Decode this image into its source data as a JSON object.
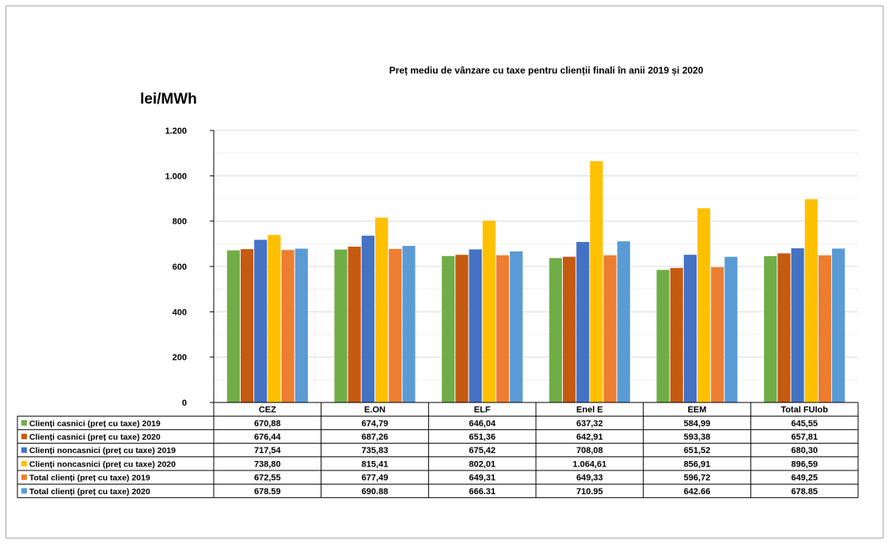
{
  "chart_data": {
    "type": "bar",
    "title": "Preț mediu de vânzare cu taxe pentru clienții finali în anii 2019 și 2020",
    "ylabel": "lei/MWh",
    "ylim": [
      0,
      1200
    ],
    "yticks": [
      0,
      200,
      400,
      600,
      800,
      1000,
      1200
    ],
    "ytick_labels": [
      "0",
      "200",
      "400",
      "600",
      "800",
      "1.000",
      "1.200"
    ],
    "grid": true,
    "legend": "data-table",
    "categories": [
      "CEZ",
      "E.ON",
      "ELF",
      "Enel E",
      "EEM",
      "Total FUIob"
    ],
    "series": [
      {
        "name": "Clienți casnici (preț cu taxe) 2019",
        "color": "#70ad47",
        "values": [
          670.88,
          674.79,
          646.04,
          637.32,
          584.99,
          645.55
        ],
        "labels": [
          "670,88",
          "674,79",
          "646,04",
          "637,32",
          "584,99",
          "645,55"
        ]
      },
      {
        "name": "Clienți casnici (preț cu taxe) 2020",
        "color": "#c55a11",
        "values": [
          676.44,
          687.26,
          651.36,
          642.91,
          593.38,
          657.81
        ],
        "labels": [
          "676,44",
          "687,26",
          "651,36",
          "642,91",
          "593,38",
          "657,81"
        ]
      },
      {
        "name": "Clienți noncasnici (preț cu taxe) 2019",
        "color": "#4472c4",
        "values": [
          717.54,
          735.83,
          675.42,
          708.08,
          651.52,
          680.3
        ],
        "labels": [
          "717,54",
          "735,83",
          "675,42",
          "708,08",
          "651,52",
          "680,30"
        ]
      },
      {
        "name": "Clienți noncasnici (preț cu taxe) 2020",
        "color": "#ffc000",
        "values": [
          738.8,
          815.41,
          802.01,
          1064.61,
          856.91,
          896.59
        ],
        "labels": [
          "738,80",
          "815,41",
          "802,01",
          "1.064,61",
          "856,91",
          "896,59"
        ]
      },
      {
        "name": "Total clienți (preț cu taxe) 2019",
        "color": "#ed7d31",
        "values": [
          672.55,
          677.49,
          649.31,
          649.33,
          596.72,
          649.25
        ],
        "labels": [
          "672,55",
          "677,49",
          "649,31",
          "649,33",
          "596,72",
          "649,25"
        ]
      },
      {
        "name": "Total clienți (preț cu taxe) 2020",
        "color": "#5b9bd5",
        "values": [
          678.59,
          690.88,
          666.31,
          710.95,
          642.66,
          678.85
        ],
        "labels": [
          "678.59",
          "690.88",
          "666.31",
          "710.95",
          "642.66",
          "678.85"
        ]
      }
    ]
  }
}
